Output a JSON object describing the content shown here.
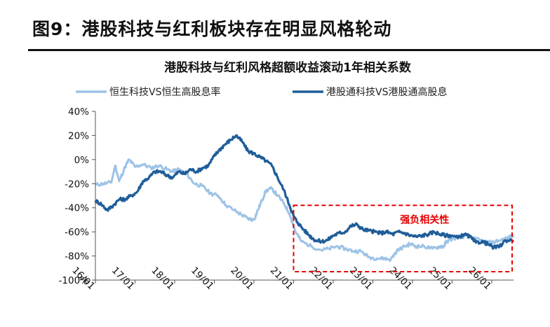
{
  "figure": {
    "title": "图9：港股科技与红利板块存在明显风格轮动"
  },
  "chart_data": {
    "type": "line",
    "title": "港股科技与红利风格超额收益滚动1年相关系数",
    "ylim": [
      -1.0,
      0.4
    ],
    "yticks": [
      0.4,
      0.2,
      0.0,
      -0.2,
      -0.4,
      -0.6,
      -0.8,
      -1.0
    ],
    "ytick_labels": [
      "40%",
      "20%",
      "0%",
      "-20%",
      "-40%",
      "-60%",
      "-80%",
      "-100%"
    ],
    "xlim": [
      2016.0,
      2026.55
    ],
    "xticks": [
      2016,
      2017,
      2018,
      2019,
      2020,
      2021,
      2022,
      2023,
      2024,
      2025,
      2026
    ],
    "xtick_labels": [
      "16/01",
      "17/01",
      "18/01",
      "19/01",
      "20/01",
      "21/01",
      "22/01",
      "23/01",
      "24/01",
      "25/01",
      "26/01"
    ],
    "grid": false,
    "legend_position": "top",
    "series": [
      {
        "name": "恒生科技VS恒生高股息率",
        "color": "#9dc3e6",
        "points": [
          [
            2016.0,
            -0.21
          ],
          [
            2016.2,
            -0.2
          ],
          [
            2016.4,
            -0.19
          ],
          [
            2016.5,
            -0.05
          ],
          [
            2016.6,
            -0.18
          ],
          [
            2016.75,
            -0.06
          ],
          [
            2016.85,
            0.0
          ],
          [
            2017.0,
            -0.06
          ],
          [
            2017.2,
            -0.04
          ],
          [
            2017.4,
            -0.07
          ],
          [
            2017.6,
            -0.05
          ],
          [
            2017.8,
            -0.08
          ],
          [
            2017.95,
            -0.1
          ],
          [
            2018.1,
            -0.08
          ],
          [
            2018.3,
            -0.12
          ],
          [
            2018.5,
            -0.2
          ],
          [
            2018.7,
            -0.22
          ],
          [
            2018.9,
            -0.28
          ],
          [
            2019.1,
            -0.3
          ],
          [
            2019.3,
            -0.38
          ],
          [
            2019.5,
            -0.42
          ],
          [
            2019.7,
            -0.46
          ],
          [
            2019.85,
            -0.49
          ],
          [
            2020.0,
            -0.5
          ],
          [
            2020.1,
            -0.42
          ],
          [
            2020.2,
            -0.34
          ],
          [
            2020.3,
            -0.26
          ],
          [
            2020.45,
            -0.24
          ],
          [
            2020.6,
            -0.3
          ],
          [
            2020.75,
            -0.36
          ],
          [
            2020.9,
            -0.45
          ],
          [
            2021.05,
            -0.6
          ],
          [
            2021.2,
            -0.68
          ],
          [
            2021.45,
            -0.72
          ],
          [
            2021.7,
            -0.75
          ],
          [
            2021.9,
            -0.74
          ],
          [
            2022.1,
            -0.72
          ],
          [
            2022.3,
            -0.74
          ],
          [
            2022.5,
            -0.76
          ],
          [
            2022.7,
            -0.76
          ],
          [
            2022.9,
            -0.81
          ],
          [
            2023.1,
            -0.82
          ],
          [
            2023.3,
            -0.82
          ],
          [
            2023.45,
            -0.83
          ],
          [
            2023.6,
            -0.76
          ],
          [
            2023.8,
            -0.72
          ],
          [
            2023.95,
            -0.7
          ],
          [
            2024.1,
            -0.72
          ],
          [
            2024.3,
            -0.72
          ],
          [
            2024.5,
            -0.74
          ],
          [
            2024.7,
            -0.72
          ],
          [
            2024.8,
            -0.72
          ],
          [
            2024.85,
            -0.68
          ],
          [
            2025.0,
            -0.66
          ],
          [
            2025.2,
            -0.64
          ],
          [
            2025.4,
            -0.64
          ],
          [
            2025.6,
            -0.66
          ],
          [
            2025.8,
            -0.68
          ],
          [
            2026.0,
            -0.69
          ],
          [
            2026.2,
            -0.67
          ],
          [
            2026.4,
            -0.65
          ],
          [
            2026.55,
            -0.63
          ]
        ]
      },
      {
        "name": "港股通科技VS港股通高股息",
        "color": "#1f5d99",
        "points": [
          [
            2016.0,
            -0.34
          ],
          [
            2016.15,
            -0.37
          ],
          [
            2016.3,
            -0.42
          ],
          [
            2016.45,
            -0.38
          ],
          [
            2016.6,
            -0.33
          ],
          [
            2016.75,
            -0.33
          ],
          [
            2016.9,
            -0.3
          ],
          [
            2017.05,
            -0.27
          ],
          [
            2017.2,
            -0.18
          ],
          [
            2017.35,
            -0.15
          ],
          [
            2017.5,
            -0.1
          ],
          [
            2017.65,
            -0.1
          ],
          [
            2017.8,
            -0.13
          ],
          [
            2017.95,
            -0.15
          ],
          [
            2018.1,
            -0.1
          ],
          [
            2018.25,
            -0.12
          ],
          [
            2018.4,
            -0.08
          ],
          [
            2018.55,
            -0.1
          ],
          [
            2018.7,
            -0.07
          ],
          [
            2018.85,
            -0.05
          ],
          [
            2019.0,
            0.03
          ],
          [
            2019.1,
            0.07
          ],
          [
            2019.25,
            0.12
          ],
          [
            2019.4,
            0.16
          ],
          [
            2019.55,
            0.2
          ],
          [
            2019.7,
            0.15
          ],
          [
            2019.85,
            0.07
          ],
          [
            2020.0,
            0.05
          ],
          [
            2020.15,
            0.02
          ],
          [
            2020.3,
            -0.01
          ],
          [
            2020.45,
            -0.05
          ],
          [
            2020.6,
            -0.15
          ],
          [
            2020.75,
            -0.25
          ],
          [
            2020.9,
            -0.38
          ],
          [
            2021.0,
            -0.47
          ],
          [
            2021.1,
            -0.52
          ],
          [
            2021.25,
            -0.58
          ],
          [
            2021.4,
            -0.63
          ],
          [
            2021.55,
            -0.67
          ],
          [
            2021.7,
            -0.68
          ],
          [
            2021.85,
            -0.67
          ],
          [
            2022.0,
            -0.63
          ],
          [
            2022.15,
            -0.61
          ],
          [
            2022.3,
            -0.6
          ],
          [
            2022.45,
            -0.55
          ],
          [
            2022.6,
            -0.54
          ],
          [
            2022.75,
            -0.58
          ],
          [
            2022.9,
            -0.59
          ],
          [
            2023.05,
            -0.6
          ],
          [
            2023.2,
            -0.61
          ],
          [
            2023.35,
            -0.6
          ],
          [
            2023.5,
            -0.62
          ],
          [
            2023.65,
            -0.6
          ],
          [
            2023.8,
            -0.61
          ],
          [
            2023.95,
            -0.63
          ],
          [
            2024.1,
            -0.64
          ],
          [
            2024.25,
            -0.63
          ],
          [
            2024.4,
            -0.62
          ],
          [
            2024.55,
            -0.6
          ],
          [
            2024.7,
            -0.62
          ],
          [
            2024.85,
            -0.63
          ],
          [
            2025.0,
            -0.63
          ],
          [
            2025.15,
            -0.65
          ],
          [
            2025.3,
            -0.62
          ],
          [
            2025.45,
            -0.64
          ],
          [
            2025.6,
            -0.69
          ],
          [
            2025.75,
            -0.68
          ],
          [
            2025.9,
            -0.7
          ],
          [
            2026.05,
            -0.73
          ],
          [
            2026.2,
            -0.72
          ],
          [
            2026.35,
            -0.67
          ],
          [
            2026.55,
            -0.67
          ]
        ]
      }
    ],
    "annotation": {
      "text": "强负相关性",
      "color": "#e60000",
      "x_range": [
        2021.0,
        2026.55
      ],
      "y_range": [
        -0.93,
        -0.38
      ]
    }
  }
}
